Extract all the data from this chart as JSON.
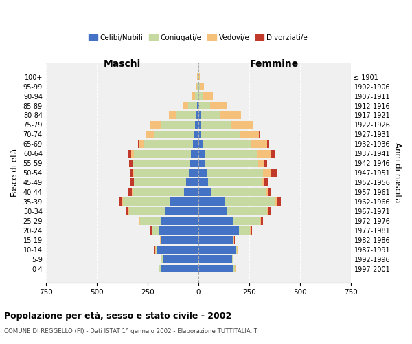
{
  "age_groups": [
    "0-4",
    "5-9",
    "10-14",
    "15-19",
    "20-24",
    "25-29",
    "30-34",
    "35-39",
    "40-44",
    "45-49",
    "50-54",
    "55-59",
    "60-64",
    "65-69",
    "70-74",
    "75-79",
    "80-84",
    "85-89",
    "90-94",
    "95-99",
    "100+"
  ],
  "birth_years": [
    "1997-2001",
    "1992-1996",
    "1987-1991",
    "1982-1986",
    "1977-1981",
    "1972-1976",
    "1967-1971",
    "1962-1966",
    "1957-1961",
    "1952-1956",
    "1947-1951",
    "1942-1946",
    "1937-1941",
    "1932-1936",
    "1927-1931",
    "1922-1926",
    "1917-1921",
    "1912-1916",
    "1907-1911",
    "1902-1906",
    "≤ 1901"
  ],
  "male_celibi": [
    185,
    175,
    205,
    180,
    195,
    185,
    160,
    140,
    70,
    60,
    45,
    40,
    35,
    25,
    20,
    15,
    10,
    5,
    2,
    2,
    2
  ],
  "male_coniugati": [
    5,
    5,
    5,
    5,
    30,
    100,
    180,
    230,
    255,
    255,
    270,
    280,
    280,
    240,
    200,
    170,
    100,
    45,
    15,
    5,
    2
  ],
  "male_vedovi": [
    2,
    2,
    2,
    2,
    5,
    3,
    3,
    3,
    3,
    3,
    5,
    5,
    15,
    25,
    35,
    50,
    35,
    25,
    15,
    3,
    1
  ],
  "male_divorziati": [
    2,
    2,
    2,
    2,
    5,
    5,
    10,
    15,
    15,
    15,
    15,
    15,
    15,
    5,
    0,
    0,
    0,
    0,
    0,
    0,
    0
  ],
  "female_celibi": [
    175,
    165,
    185,
    170,
    200,
    175,
    140,
    130,
    65,
    50,
    40,
    35,
    30,
    20,
    10,
    10,
    10,
    5,
    2,
    2,
    2
  ],
  "female_coniugati": [
    5,
    5,
    5,
    5,
    55,
    130,
    200,
    250,
    270,
    265,
    280,
    260,
    260,
    240,
    195,
    150,
    100,
    55,
    20,
    5,
    2
  ],
  "female_vedovi": [
    2,
    2,
    2,
    2,
    5,
    3,
    5,
    5,
    10,
    10,
    40,
    30,
    65,
    80,
    95,
    110,
    100,
    80,
    50,
    20,
    5
  ],
  "female_divorziati": [
    2,
    2,
    2,
    2,
    5,
    10,
    15,
    20,
    15,
    20,
    30,
    15,
    20,
    10,
    5,
    0,
    0,
    0,
    0,
    0,
    0
  ],
  "colors": {
    "celibi": "#4472c4",
    "coniugati": "#c5d9a0",
    "vedovi": "#f5c17a",
    "divorziati": "#c0392b"
  },
  "xlim": 750,
  "title": "Popolazione per età, sesso e stato civile - 2002",
  "subtitle": "COMUNE DI REGGELLO (FI) - Dati ISTAT 1° gennaio 2002 - Elaborazione TUTTITALIA.IT",
  "xlabel_left": "Maschi",
  "xlabel_right": "Femmine",
  "ylabel_left": "Fasce di età",
  "ylabel_right": "Anni di nascita",
  "bg_color": "#f0f0f0",
  "grid_color": "#cccccc"
}
